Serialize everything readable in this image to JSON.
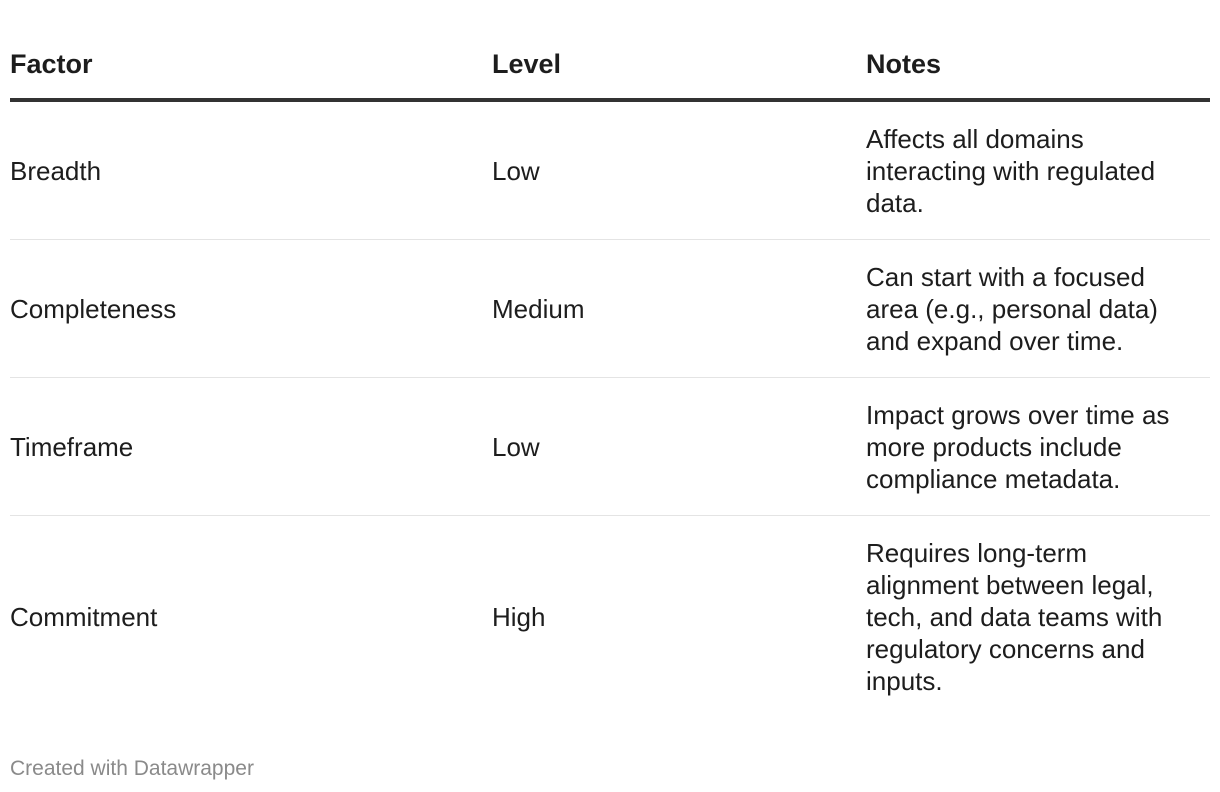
{
  "chart_data": {
    "type": "table",
    "columns": [
      "Factor",
      "Level",
      "Notes"
    ],
    "rows": [
      {
        "factor": "Breadth",
        "level": "Low",
        "notes": "Affects all domains interacting with regulated data."
      },
      {
        "factor": "Completeness",
        "level": "Medium",
        "notes": "Can start with a focused area (e.g., personal data) and expand over time."
      },
      {
        "factor": "Timeframe",
        "level": "Low",
        "notes": "Impact grows over time as more products include compliance metadata."
      },
      {
        "factor": "Commitment",
        "level": "High",
        "notes": "Requires long-term alignment between legal, tech, and data teams with regulatory concerns and inputs."
      }
    ],
    "grid": true
  },
  "footer": {
    "credit": "Created with Datawrapper"
  },
  "colors": {
    "text": "#1d1d1d",
    "header_rule": "#333333",
    "row_rule": "#e4e4e4",
    "footer_text": "#8a8a8a"
  }
}
